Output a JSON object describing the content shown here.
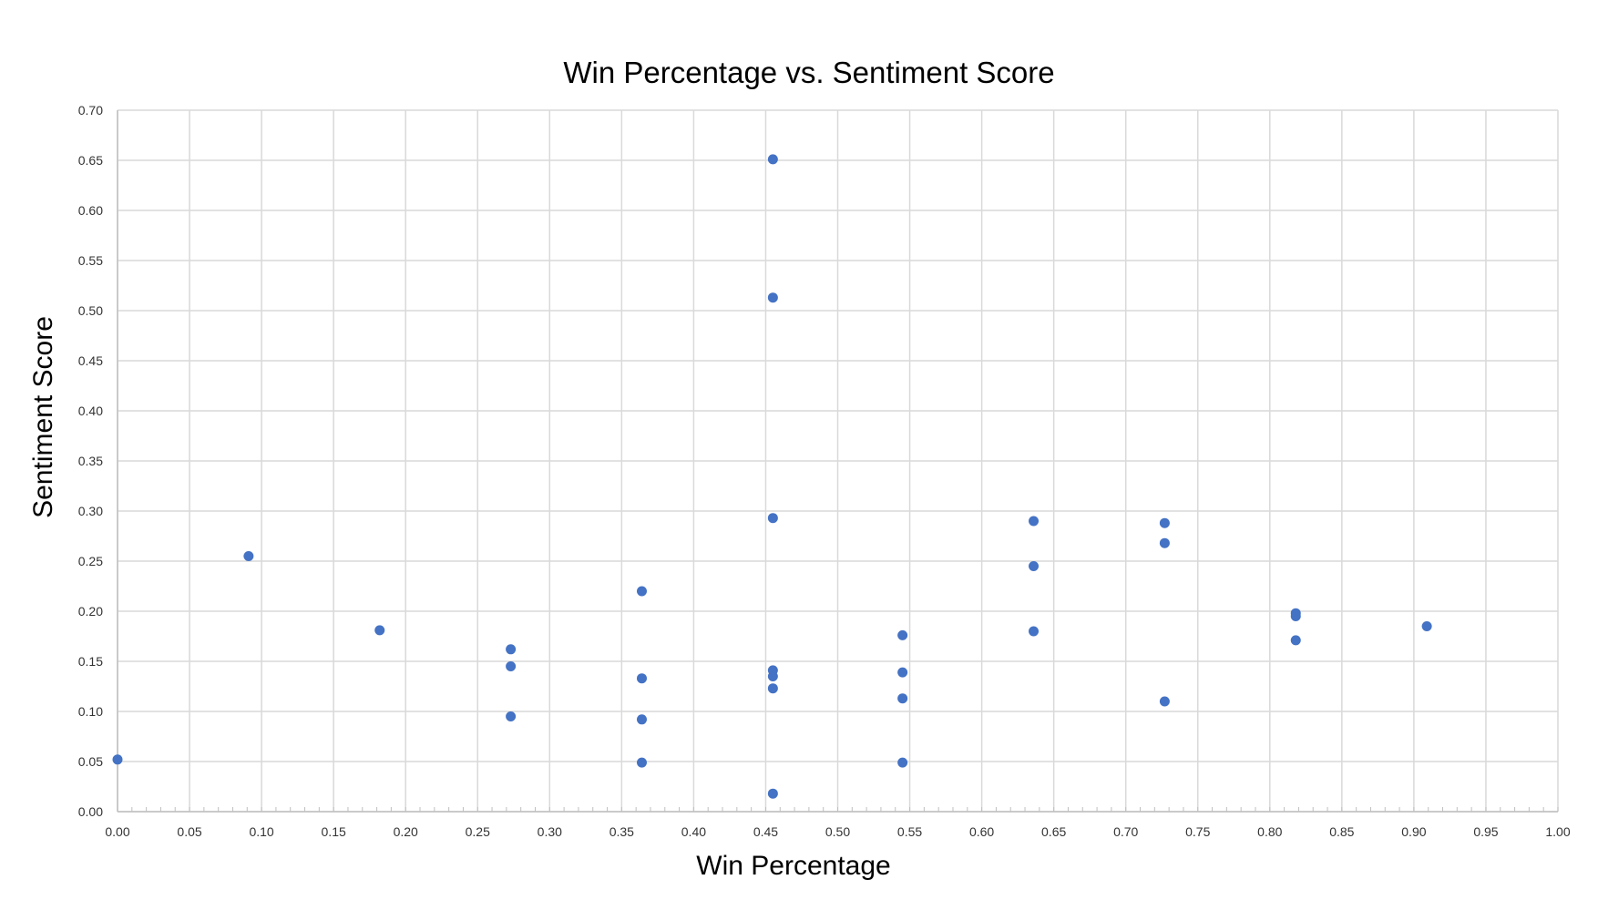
{
  "chart_data": {
    "type": "scatter",
    "title": "Win Percentage vs. Sentiment Score",
    "xlabel": "Win Percentage",
    "ylabel": "Sentiment Score",
    "xlim": [
      0,
      1
    ],
    "ylim": [
      0,
      0.7
    ],
    "x_ticks": [
      "0.00",
      "0.05",
      "0.10",
      "0.15",
      "0.20",
      "0.25",
      "0.30",
      "0.35",
      "0.40",
      "0.45",
      "0.50",
      "0.55",
      "0.60",
      "0.65",
      "0.70",
      "0.75",
      "0.80",
      "0.85",
      "0.90",
      "0.95",
      "1.00"
    ],
    "y_ticks": [
      "0.00",
      "0.05",
      "0.10",
      "0.15",
      "0.20",
      "0.25",
      "0.30",
      "0.35",
      "0.40",
      "0.45",
      "0.50",
      "0.55",
      "0.60",
      "0.65",
      "0.70"
    ],
    "grid": true,
    "legend": "none",
    "color": "#4472c4",
    "points": [
      {
        "x": 0.0,
        "y": 0.052
      },
      {
        "x": 0.091,
        "y": 0.255
      },
      {
        "x": 0.182,
        "y": 0.181
      },
      {
        "x": 0.273,
        "y": 0.162
      },
      {
        "x": 0.273,
        "y": 0.145
      },
      {
        "x": 0.273,
        "y": 0.095
      },
      {
        "x": 0.364,
        "y": 0.22
      },
      {
        "x": 0.364,
        "y": 0.133
      },
      {
        "x": 0.364,
        "y": 0.092
      },
      {
        "x": 0.364,
        "y": 0.049
      },
      {
        "x": 0.455,
        "y": 0.651
      },
      {
        "x": 0.455,
        "y": 0.513
      },
      {
        "x": 0.455,
        "y": 0.293
      },
      {
        "x": 0.455,
        "y": 0.141
      },
      {
        "x": 0.455,
        "y": 0.135
      },
      {
        "x": 0.455,
        "y": 0.123
      },
      {
        "x": 0.455,
        "y": 0.018
      },
      {
        "x": 0.545,
        "y": 0.176
      },
      {
        "x": 0.545,
        "y": 0.139
      },
      {
        "x": 0.545,
        "y": 0.113
      },
      {
        "x": 0.545,
        "y": 0.049
      },
      {
        "x": 0.636,
        "y": 0.29
      },
      {
        "x": 0.636,
        "y": 0.245
      },
      {
        "x": 0.636,
        "y": 0.18
      },
      {
        "x": 0.727,
        "y": 0.288
      },
      {
        "x": 0.727,
        "y": 0.268
      },
      {
        "x": 0.727,
        "y": 0.11
      },
      {
        "x": 0.818,
        "y": 0.198
      },
      {
        "x": 0.818,
        "y": 0.195
      },
      {
        "x": 0.818,
        "y": 0.171
      },
      {
        "x": 0.909,
        "y": 0.185
      }
    ]
  }
}
